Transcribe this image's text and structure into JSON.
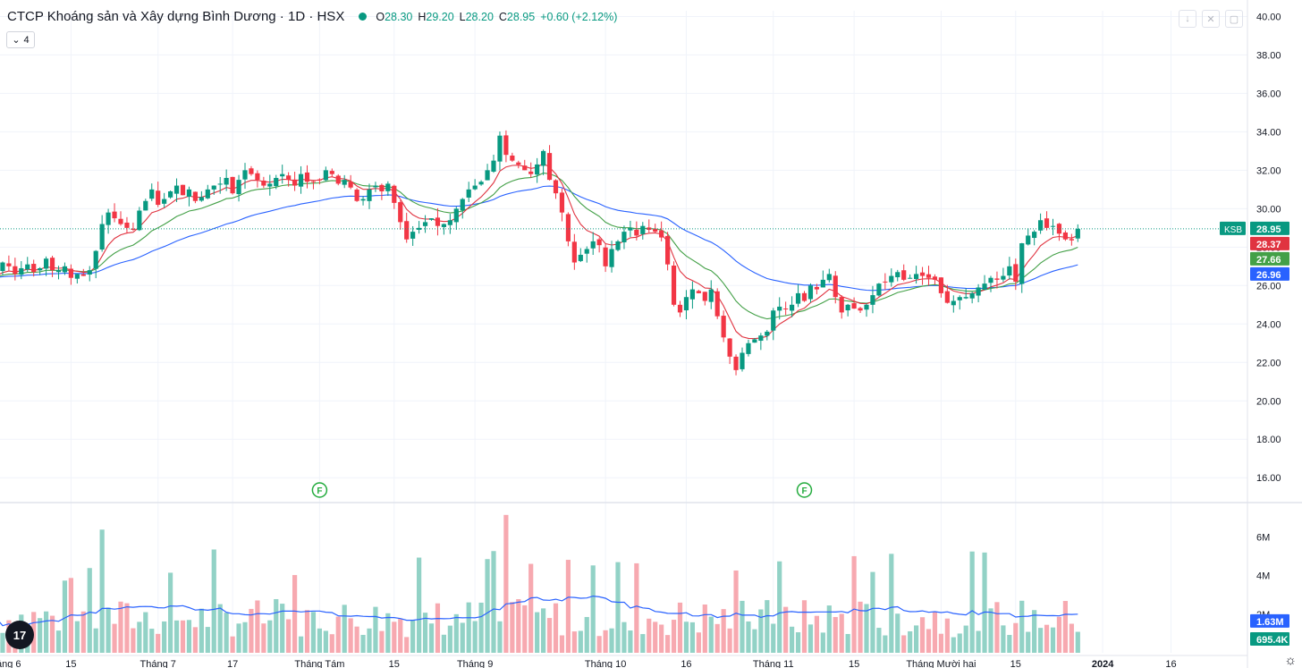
{
  "header": {
    "title": "CTCP Khoáng sản và Xây dựng Bình Dương · 1D · HSX",
    "o_label": "O",
    "o_value": "28.30",
    "h_label": "H",
    "h_value": "29.20",
    "l_label": "L",
    "l_value": "28.20",
    "c_label": "C",
    "c_value": "28.95",
    "change": "+0.60 (+2.12%)"
  },
  "indicator_toggle": {
    "count": "4"
  },
  "corner_buttons": [
    "↓",
    "✕",
    "▢"
  ],
  "logo_text": "17",
  "gear_icon": "☼",
  "colors": {
    "up": "#089981",
    "down": "#f23645",
    "ma_red": "#e03340",
    "ma_green": "#43a047",
    "ma_blue": "#2962ff",
    "vol_up": "#92d2c6",
    "vol_down": "#f7a9b0"
  },
  "chart_data": {
    "type": "candlestick",
    "symbol": "KSB",
    "title": "CTCP Khoáng sản và Xây dựng Bình Dương · 1D · HSX",
    "price_axis": {
      "ticks": [
        "40.00",
        "38.00",
        "36.00",
        "34.00",
        "32.00",
        "30.00",
        "28.00",
        "26.00",
        "24.00",
        "22.00",
        "20.00",
        "18.00",
        "16.00"
      ],
      "ylim": [
        14.8,
        40.3
      ]
    },
    "volume_axis": {
      "ticks": [
        "6M",
        "4M",
        "2M"
      ],
      "ylim": [
        0,
        7.6
      ]
    },
    "x_labels": [
      "áng 6",
      "15",
      "Tháng 7",
      "17",
      "Tháng Tám",
      "15",
      "Tháng 9",
      "Tháng 10",
      "16",
      "Tháng 11",
      "15",
      "Tháng Mười hai",
      "15",
      "2024",
      "16"
    ],
    "x_label_positions": [
      0,
      12,
      26,
      38,
      52,
      64,
      77,
      98,
      111,
      125,
      138,
      152,
      164,
      178,
      189
    ],
    "closes": [
      26.8,
      27.2,
      27.0,
      26.6,
      26.9,
      27.1,
      26.7,
      26.9,
      27.4,
      26.8,
      26.8,
      27.0,
      26.4,
      26.6,
      26.5,
      26.8,
      27.8,
      29.2,
      29.8,
      29.5,
      29.2,
      29.0,
      28.9,
      29.9,
      30.4,
      31.0,
      30.2,
      30.5,
      30.9,
      31.2,
      30.7,
      31.0,
      30.4,
      30.6,
      31.0,
      31.2,
      31.3,
      31.6,
      30.8,
      31.5,
      32.0,
      31.8,
      31.5,
      31.2,
      31.3,
      31.6,
      31.8,
      31.5,
      31.2,
      31.8,
      31.4,
      31.4,
      31.5,
      32.0,
      31.8,
      31.3,
      31.5,
      31.1,
      30.4,
      30.5,
      31.0,
      31.2,
      30.9,
      31.3,
      30.3,
      29.3,
      28.4,
      28.8,
      29.0,
      29.3,
      29.5,
      29.1,
      29.2,
      29.4,
      30.0,
      30.5,
      31.0,
      31.2,
      31.4,
      32.0,
      32.5,
      33.8,
      32.8,
      32.5,
      32.3,
      32.0,
      31.8,
      32.3,
      33.0,
      31.5,
      30.8,
      29.8,
      28.3,
      27.2,
      27.6,
      27.9,
      28.3,
      28.1,
      27.0,
      27.9,
      28.3,
      28.8,
      29.0,
      28.6,
      29.1,
      28.9,
      28.8,
      28.5,
      27.1,
      25.0,
      24.6,
      25.4,
      25.8,
      25.6,
      25.2,
      25.8,
      24.4,
      23.3,
      22.3,
      21.6,
      22.5,
      23.0,
      23.2,
      23.4,
      23.6,
      24.7,
      24.9,
      24.8,
      25.0,
      25.6,
      25.2,
      26.0,
      25.8,
      26.3,
      26.6,
      25.4,
      24.6,
      25.0,
      24.8,
      24.7,
      25.0,
      25.5,
      26.1,
      26.2,
      26.5,
      26.7,
      26.3,
      26.4,
      26.6,
      26.5,
      26.4,
      26.3,
      25.6,
      25.1,
      25.2,
      25.4,
      25.4,
      25.6,
      25.9,
      26.1,
      26.4,
      26.3,
      26.5,
      27.0,
      26.2,
      28.2,
      28.6,
      28.8,
      29.4,
      29.0,
      29.1,
      28.7,
      28.4,
      28.35,
      28.95
    ],
    "last_price": "28.95",
    "ma_values": [
      {
        "name": "MA short",
        "last": "28.37"
      },
      {
        "name": "MA mid",
        "last": "27.66"
      },
      {
        "name": "MA long",
        "last": "26.96"
      }
    ],
    "volume_last": [
      "1.63M",
      "695.4K"
    ],
    "events": [
      "F",
      "F"
    ],
    "event_positions": [
      52,
      130
    ]
  }
}
